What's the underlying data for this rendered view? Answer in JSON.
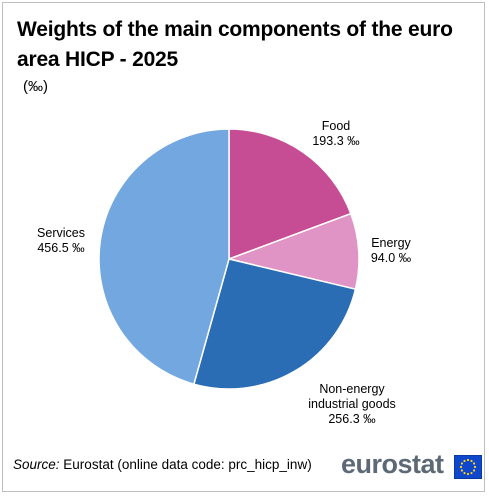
{
  "title": "Weights of the main components of the euro area HICP - 2025",
  "unit": "(‰)",
  "source": {
    "label": "Source:",
    "text": "Eurostat (online data code: prc_hicp_inw)"
  },
  "logo": {
    "text": "eurostat",
    "flag_icon": "eu-flag-icon"
  },
  "chart_data": {
    "type": "pie",
    "start_angle_deg": 0,
    "direction": "clockwise",
    "slices": [
      {
        "label": [
          "Food"
        ],
        "value_label": "193.3 ‰",
        "value": 193.3,
        "color": "#c64c94"
      },
      {
        "label": [
          "Energy"
        ],
        "value_label": "94.0 ‰",
        "value": 94.0,
        "color": "#e093c5"
      },
      {
        "label": [
          "Non-energy",
          "industrial goods"
        ],
        "value_label": "256.3 ‰",
        "value": 256.3,
        "color": "#2a6db4"
      },
      {
        "label": [
          "Services"
        ],
        "value_label": "456.5 ‰",
        "value": 456.5,
        "color": "#72a7e0"
      }
    ]
  }
}
